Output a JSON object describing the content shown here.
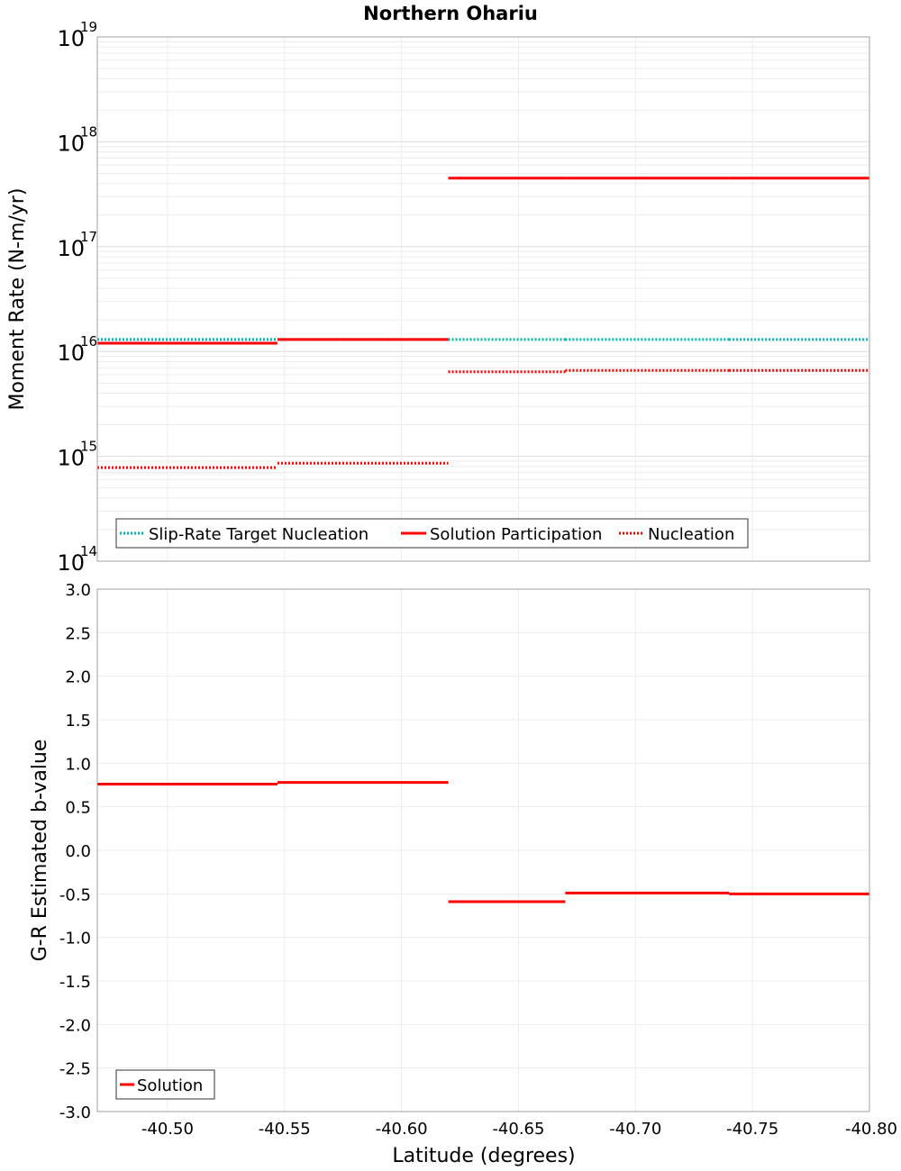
{
  "title": "Northern Ohariu",
  "xlabel": "Latitude (degrees)",
  "chart_data": [
    {
      "type": "line",
      "panel": "top",
      "ylabel": "Moment Rate (N-m/yr)",
      "yscale": "log",
      "ylim": [
        100000000000000.0,
        1e+19
      ],
      "xlim": [
        -40.47,
        -40.8
      ],
      "grid": true,
      "legend_placement": "bottom-left",
      "y_ticks": [
        {
          "base": "10",
          "exp": "14",
          "value": 100000000000000.0
        },
        {
          "base": "10",
          "exp": "15",
          "value": 1000000000000000.0
        },
        {
          "base": "10",
          "exp": "16",
          "value": 1e+16
        },
        {
          "base": "10",
          "exp": "17",
          "value": 1e+17
        },
        {
          "base": "10",
          "exp": "18",
          "value": 1e+18
        },
        {
          "base": "10",
          "exp": "19",
          "value": 1e+19
        }
      ],
      "legend": [
        "Slip-Rate Target Nucleation",
        "Solution Participation",
        "Nucleation"
      ],
      "series": [
        {
          "name": "Slip-Rate Target Nucleation",
          "color": "#00b2b2",
          "style": "dotted",
          "segments": [
            {
              "x": [
                -40.47,
                -40.547
              ],
              "y": 1.3e+16
            },
            {
              "x": [
                -40.547,
                -40.62
              ],
              "y": 1.3e+16
            },
            {
              "x": [
                -40.62,
                -40.67
              ],
              "y": 1.3e+16
            },
            {
              "x": [
                -40.67,
                -40.74
              ],
              "y": 1.3e+16
            },
            {
              "x": [
                -40.74,
                -40.8
              ],
              "y": 1.3e+16
            }
          ]
        },
        {
          "name": "Solution Participation",
          "color": "#ff0000",
          "style": "solid",
          "segments": [
            {
              "x": [
                -40.47,
                -40.547
              ],
              "y": 1.2e+16
            },
            {
              "x": [
                -40.547,
                -40.62
              ],
              "y": 1.3e+16
            },
            {
              "x": [
                -40.62,
                -40.67
              ],
              "y": 4.5e+17
            },
            {
              "x": [
                -40.67,
                -40.74
              ],
              "y": 4.5e+17
            },
            {
              "x": [
                -40.74,
                -40.8
              ],
              "y": 4.5e+17
            }
          ]
        },
        {
          "name": "Nucleation",
          "color": "#ff0000",
          "style": "dotted",
          "segments": [
            {
              "x": [
                -40.47,
                -40.547
              ],
              "y": 780000000000000.0
            },
            {
              "x": [
                -40.547,
                -40.62
              ],
              "y": 860000000000000.0
            },
            {
              "x": [
                -40.62,
                -40.67
              ],
              "y": 6400000000000000.0
            },
            {
              "x": [
                -40.67,
                -40.74
              ],
              "y": 6600000000000000.0
            },
            {
              "x": [
                -40.74,
                -40.8
              ],
              "y": 6600000000000000.0
            }
          ]
        }
      ]
    },
    {
      "type": "line",
      "panel": "bottom",
      "ylabel": "G-R Estimated b-value",
      "ylim": [
        -3.0,
        3.0
      ],
      "xlim": [
        -40.47,
        -40.8
      ],
      "grid": true,
      "legend_placement": "bottom-left",
      "x_ticks": [
        "-40.50",
        "-40.55",
        "-40.60",
        "-40.65",
        "-40.70",
        "-40.75",
        "-40.80"
      ],
      "x_tick_values": [
        -40.5,
        -40.55,
        -40.6,
        -40.65,
        -40.7,
        -40.75,
        -40.8
      ],
      "y_ticks": [
        "3.0",
        "2.5",
        "2.0",
        "1.5",
        "1.0",
        "0.5",
        "0.0",
        "-0.5",
        "-1.0",
        "-1.5",
        "-2.0",
        "-2.5",
        "-3.0"
      ],
      "y_tick_values": [
        3.0,
        2.5,
        2.0,
        1.5,
        1.0,
        0.5,
        0.0,
        -0.5,
        -1.0,
        -1.5,
        -2.0,
        -2.5,
        -3.0
      ],
      "legend": [
        "Solution"
      ],
      "series": [
        {
          "name": "Solution",
          "color": "#ff0000",
          "style": "solid",
          "segments": [
            {
              "x": [
                -40.47,
                -40.547
              ],
              "y": 0.76
            },
            {
              "x": [
                -40.547,
                -40.62
              ],
              "y": 0.78
            },
            {
              "x": [
                -40.62,
                -40.67
              ],
              "y": -0.59
            },
            {
              "x": [
                -40.67,
                -40.74
              ],
              "y": -0.49
            },
            {
              "x": [
                -40.74,
                -40.8
              ],
              "y": -0.5
            }
          ]
        }
      ]
    }
  ]
}
